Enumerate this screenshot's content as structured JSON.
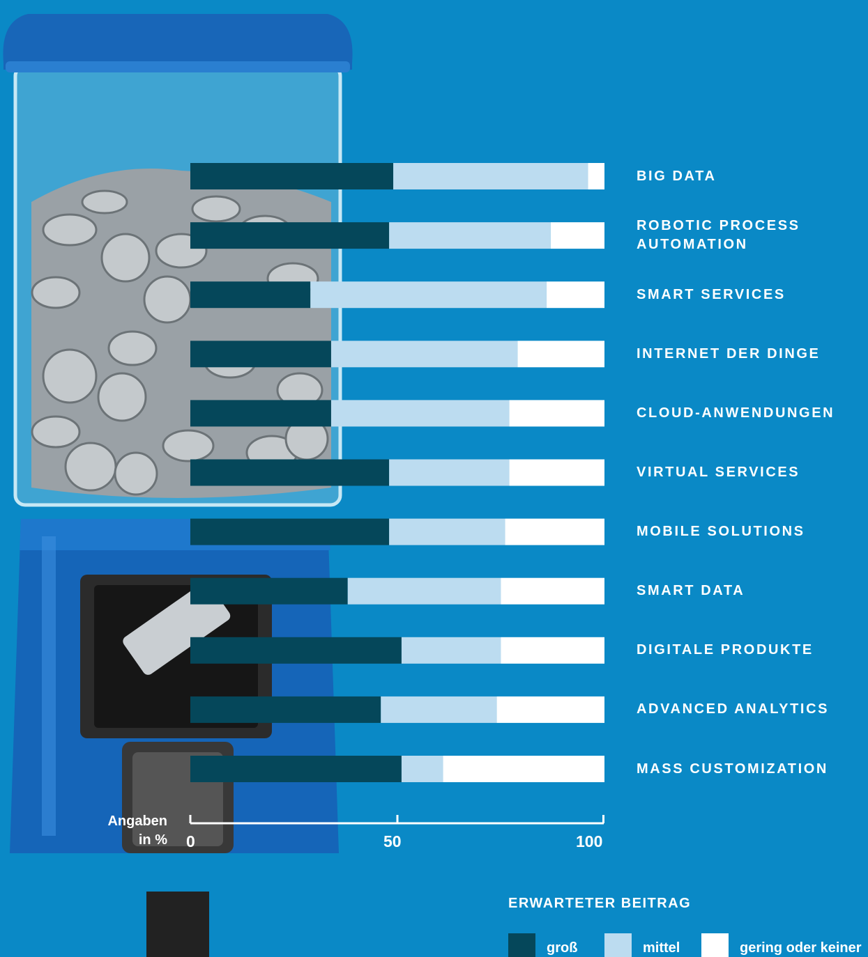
{
  "colors": {
    "background": "#0a89c6",
    "gross": "#05475a",
    "mittel": "#bcdcf0",
    "gering": "#ffffff"
  },
  "axis": {
    "unit_line1": "Angaben",
    "unit_line2": "in %",
    "ticks": [
      "0",
      "50",
      "100"
    ]
  },
  "legend": {
    "title": "ERWARTETER BEITRAG",
    "items": [
      {
        "label": "groß",
        "color": "#05475a"
      },
      {
        "label": "mittel",
        "color": "#bcdcf0"
      },
      {
        "label": "gering oder keiner",
        "color": "#ffffff"
      }
    ]
  },
  "chart_data": {
    "type": "bar",
    "orientation": "horizontal",
    "stacked": true,
    "xlim": [
      0,
      100
    ],
    "categories": [
      [
        "BIG DATA"
      ],
      [
        "ROBOTIC PROCESS",
        "AUTOMATION"
      ],
      [
        "SMART SERVICES"
      ],
      [
        "INTERNET DER DINGE"
      ],
      [
        "CLOUD-ANWENDUNGEN"
      ],
      [
        "VIRTUAL SERVICES"
      ],
      [
        "MOBILE SOLUTIONS"
      ],
      [
        "SMART DATA"
      ],
      [
        "DIGITALE PRODUKTE"
      ],
      [
        "ADVANCED ANALYTICS"
      ],
      [
        "MASS CUSTOMIZATION"
      ]
    ],
    "series": [
      {
        "name": "groß",
        "values": [
          49,
          48,
          29,
          34,
          34,
          48,
          48,
          38,
          51,
          46,
          51
        ]
      },
      {
        "name": "mittel",
        "values": [
          47,
          39,
          57,
          45,
          43,
          29,
          28,
          37,
          24,
          28,
          10
        ]
      },
      {
        "name": "gering oder keiner",
        "values": [
          4,
          13,
          14,
          21,
          23,
          23,
          24,
          25,
          25,
          26,
          39
        ]
      }
    ]
  }
}
